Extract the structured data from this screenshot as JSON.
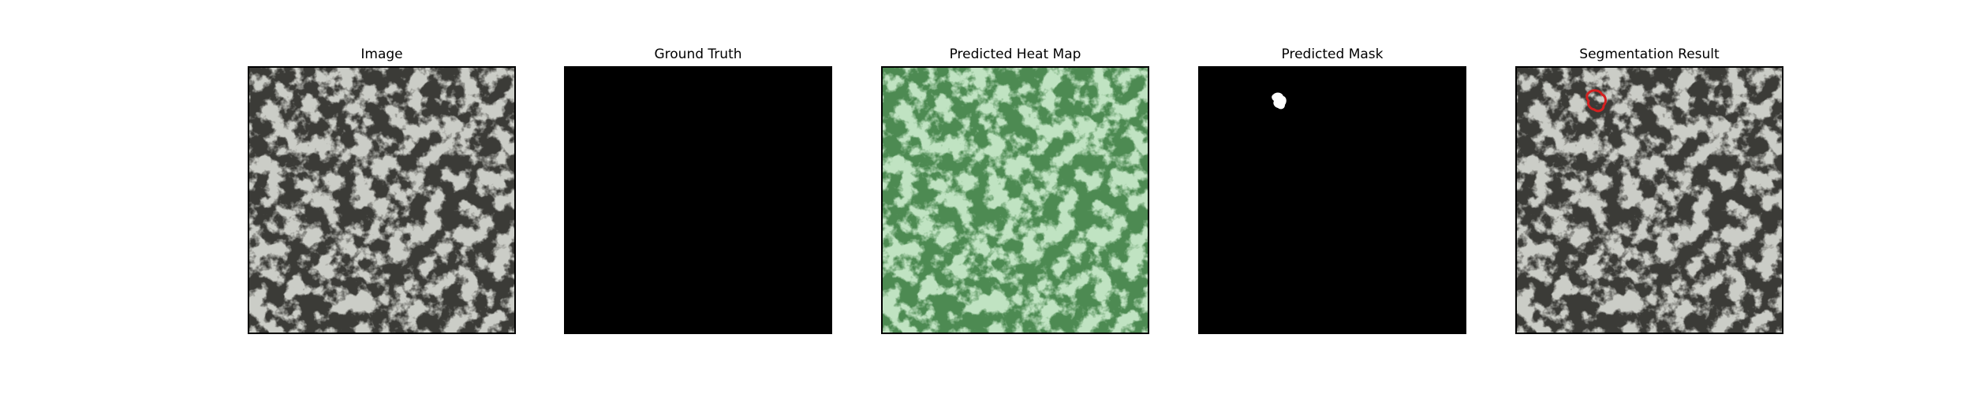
{
  "figure": {
    "panels": [
      {
        "title": "Image"
      },
      {
        "title": "Ground Truth"
      },
      {
        "title": "Predicted Heat Map"
      },
      {
        "title": "Predicted Mask"
      },
      {
        "title": "Segmentation Result"
      }
    ]
  },
  "colors": {
    "texture_light": "#9a9b92",
    "texture_dark": "#3b3b37",
    "heat_light": "#86c488",
    "heat_dark": "#4d8a52",
    "mask_background": "#000000",
    "mask_blob": "#ffffff",
    "contour": "#d42020"
  }
}
